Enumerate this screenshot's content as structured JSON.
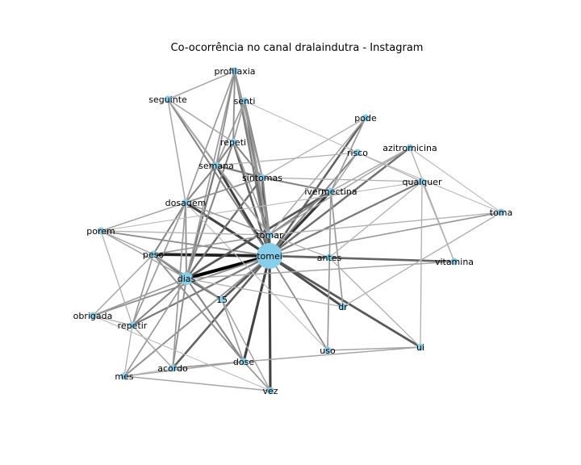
{
  "title": "Co-ocorrência no canal dralaindutra - Instagram",
  "colors": {
    "node": "#87CEEB",
    "edge_strong": "#000000",
    "edge_weak": "#d9d9d9"
  },
  "nodes": [
    {
      "id": "tomei",
      "label": "tomei",
      "size": "large"
    },
    {
      "id": "tomar",
      "label": "tomar",
      "size": "small"
    },
    {
      "id": "dias",
      "label": "dias",
      "size": "medium"
    },
    {
      "id": "sintomas",
      "label": "sintomas",
      "size": "small"
    },
    {
      "id": "ivermectina",
      "label": "ivermectina",
      "size": "small"
    },
    {
      "id": "dosagem",
      "label": "dosagem",
      "size": "small"
    },
    {
      "id": "semana",
      "label": "semana",
      "size": "small"
    },
    {
      "id": "repeti",
      "label": "repeti",
      "size": "small"
    },
    {
      "id": "senti",
      "label": "senti",
      "size": "small"
    },
    {
      "id": "profilaxia",
      "label": "profilaxia",
      "size": "small"
    },
    {
      "id": "seguinte",
      "label": "seguinte",
      "size": "small"
    },
    {
      "id": "pode",
      "label": "pode",
      "size": "small"
    },
    {
      "id": "risco",
      "label": "risco",
      "size": "small"
    },
    {
      "id": "azitromicina",
      "label": "azitromicina",
      "size": "small"
    },
    {
      "id": "qualquer",
      "label": "qualquer",
      "size": "small"
    },
    {
      "id": "toma",
      "label": "toma",
      "size": "small"
    },
    {
      "id": "porem",
      "label": "porem",
      "size": "small"
    },
    {
      "id": "peso",
      "label": "peso",
      "size": "small"
    },
    {
      "id": "antes",
      "label": "antes",
      "size": "small"
    },
    {
      "id": "vitamina",
      "label": "vitamina",
      "size": "small"
    },
    {
      "id": "n15",
      "label": "15",
      "size": "small"
    },
    {
      "id": "dr",
      "label": "dr",
      "size": "small"
    },
    {
      "id": "obrigada",
      "label": "obrigada",
      "size": "small"
    },
    {
      "id": "repetir",
      "label": "repetir",
      "size": "small"
    },
    {
      "id": "uso",
      "label": "uso",
      "size": "small"
    },
    {
      "id": "ui",
      "label": "ui",
      "size": "small"
    },
    {
      "id": "dose",
      "label": "dose",
      "size": "small"
    },
    {
      "id": "acordo",
      "label": "acordo",
      "size": "small"
    },
    {
      "id": "mes",
      "label": "mes",
      "size": "small"
    },
    {
      "id": "vez",
      "label": "vez",
      "size": "small"
    }
  ],
  "edges": [
    [
      "tomei",
      "dias",
      1.0
    ],
    [
      "tomei",
      "peso",
      0.85
    ],
    [
      "tomei",
      "dosagem",
      0.7
    ],
    [
      "tomei",
      "semana",
      0.7
    ],
    [
      "tomei",
      "sintomas",
      0.7
    ],
    [
      "tomei",
      "ivermectina",
      0.75
    ],
    [
      "tomei",
      "tomar",
      0.6
    ],
    [
      "tomei",
      "dose",
      0.7
    ],
    [
      "tomei",
      "vez",
      0.7
    ],
    [
      "tomei",
      "dr",
      0.65
    ],
    [
      "tomei",
      "ui",
      0.6
    ],
    [
      "tomei",
      "vitamina",
      0.55
    ],
    [
      "tomei",
      "n15",
      0.6
    ],
    [
      "tomei",
      "acordo",
      0.55
    ],
    [
      "tomei",
      "antes",
      0.55
    ],
    [
      "tomei",
      "pode",
      0.55
    ],
    [
      "tomei",
      "azitromicina",
      0.5
    ],
    [
      "tomei",
      "repeti",
      0.55
    ],
    [
      "tomei",
      "senti",
      0.5
    ],
    [
      "tomei",
      "profilaxia",
      0.45
    ],
    [
      "tomei",
      "qualquer",
      0.45
    ],
    [
      "tomei",
      "risco",
      0.4
    ],
    [
      "tomei",
      "repetir",
      0.45
    ],
    [
      "tomei",
      "obrigada",
      0.35
    ],
    [
      "tomei",
      "seguinte",
      0.4
    ],
    [
      "tomei",
      "porem",
      0.35
    ],
    [
      "tomei",
      "mes",
      0.35
    ],
    [
      "tomei",
      "uso",
      0.35
    ],
    [
      "tomei",
      "toma",
      0.3
    ],
    [
      "dias",
      "ivermectina",
      0.6
    ],
    [
      "dias",
      "sintomas",
      0.5
    ],
    [
      "dias",
      "n15",
      0.5
    ],
    [
      "dias",
      "semana",
      0.45
    ],
    [
      "dias",
      "repetir",
      0.4
    ],
    [
      "dias",
      "dose",
      0.4
    ],
    [
      "dias",
      "peso",
      0.45
    ],
    [
      "dias",
      "repeti",
      0.4
    ],
    [
      "dias",
      "obrigada",
      0.3
    ],
    [
      "dias",
      "acordo",
      0.35
    ],
    [
      "dias",
      "mes",
      0.3
    ],
    [
      "dias",
      "dosagem",
      0.35
    ],
    [
      "dias",
      "profilaxia",
      0.3
    ],
    [
      "sintomas",
      "semana",
      0.45
    ],
    [
      "sintomas",
      "ivermectina",
      0.4
    ],
    [
      "sintomas",
      "senti",
      0.4
    ],
    [
      "sintomas",
      "repeti",
      0.4
    ],
    [
      "sintomas",
      "dosagem",
      0.35
    ],
    [
      "sintomas",
      "tomar",
      0.4
    ],
    [
      "sintomas",
      "profilaxia",
      0.3
    ],
    [
      "semana",
      "repeti",
      0.4
    ],
    [
      "semana",
      "dosagem",
      0.4
    ],
    [
      "semana",
      "profilaxia",
      0.35
    ],
    [
      "semana",
      "tomar",
      0.35
    ],
    [
      "semana",
      "seguinte",
      0.3
    ],
    [
      "semana",
      "senti",
      0.3
    ],
    [
      "ivermectina",
      "tomar",
      0.4
    ],
    [
      "ivermectina",
      "dr",
      0.3
    ],
    [
      "ivermectina",
      "uso",
      0.3
    ],
    [
      "ivermectina",
      "pode",
      0.3
    ],
    [
      "ivermectina",
      "azitromicina",
      0.25
    ],
    [
      "ivermectina",
      "risco",
      0.25
    ],
    [
      "dosagem",
      "peso",
      0.4
    ],
    [
      "dosagem",
      "repetir",
      0.3
    ],
    [
      "dosagem",
      "acordo",
      0.3
    ],
    [
      "dosagem",
      "profilaxia",
      0.3
    ],
    [
      "dosagem",
      "porem",
      0.25
    ],
    [
      "dosagem",
      "seguinte",
      0.25
    ],
    [
      "peso",
      "dose",
      0.35
    ],
    [
      "peso",
      "repetir",
      0.3
    ],
    [
      "peso",
      "obrigada",
      0.25
    ],
    [
      "peso",
      "n15",
      0.3
    ],
    [
      "dose",
      "acordo",
      0.3
    ],
    [
      "dose",
      "n15",
      0.3
    ],
    [
      "dose",
      "ui",
      0.25
    ],
    [
      "dose",
      "vez",
      0.3
    ],
    [
      "mes",
      "vez",
      0.25
    ],
    [
      "mes",
      "dose",
      0.25
    ],
    [
      "uso",
      "ui",
      0.25
    ],
    [
      "qualquer",
      "ui",
      0.2
    ],
    [
      "qualquer",
      "vitamina",
      0.2
    ],
    [
      "azitromicina",
      "vitamina",
      0.2
    ],
    [
      "toma",
      "dr",
      0.2
    ],
    [
      "toma",
      "tomar",
      0.2
    ],
    [
      "porem",
      "peso",
      0.25
    ],
    [
      "porem",
      "dias",
      0.25
    ],
    [
      "porem",
      "repetir",
      0.2
    ],
    [
      "seguinte",
      "profilaxia",
      0.25
    ],
    [
      "seguinte",
      "repeti",
      0.25
    ],
    [
      "senti",
      "repeti",
      0.3
    ],
    [
      "profilaxia",
      "repeti",
      0.35
    ],
    [
      "risco",
      "qualquer",
      0.2
    ],
    [
      "pode",
      "tomar",
      0.25
    ],
    [
      "azitromicina",
      "tomar",
      0.25
    ],
    [
      "antes",
      "ui",
      0.2
    ],
    [
      "antes",
      "qualquer",
      0.2
    ],
    [
      "obrigada",
      "repetir",
      0.2
    ],
    [
      "acordo",
      "repetir",
      0.25
    ],
    [
      "mes",
      "repetir",
      0.2
    ],
    [
      "vez",
      "n15",
      0.25
    ],
    [
      "vitamina",
      "dias",
      0.25
    ],
    [
      "dr",
      "dias",
      0.2
    ],
    [
      "toma",
      "risco",
      0.15
    ],
    [
      "toma",
      "azitromicina",
      0.15
    ],
    [
      "pode",
      "sintomas",
      0.2
    ],
    [
      "risco",
      "semana",
      0.2
    ],
    [
      "qualquer",
      "sintomas",
      0.2
    ],
    [
      "uso",
      "dosagem",
      0.15
    ],
    [
      "senti",
      "tomar",
      0.3
    ],
    [
      "profilaxia",
      "tomar",
      0.3
    ],
    [
      "senti",
      "risco",
      0.15
    ],
    [
      "porem",
      "qualquer",
      0.15
    ],
    [
      "obrigada",
      "vez",
      0.15
    ],
    [
      "mes",
      "acordo",
      0.15
    ],
    [
      "repeti",
      "tomar",
      0.3
    ],
    [
      "seguinte",
      "tomar",
      0.2
    ],
    [
      "dosagem",
      "tomar",
      0.3
    ],
    [
      "porem",
      "tomar",
      0.2
    ],
    [
      "antes",
      "tomar",
      0.2
    ],
    [
      "peso",
      "tomar",
      0.3
    ]
  ]
}
